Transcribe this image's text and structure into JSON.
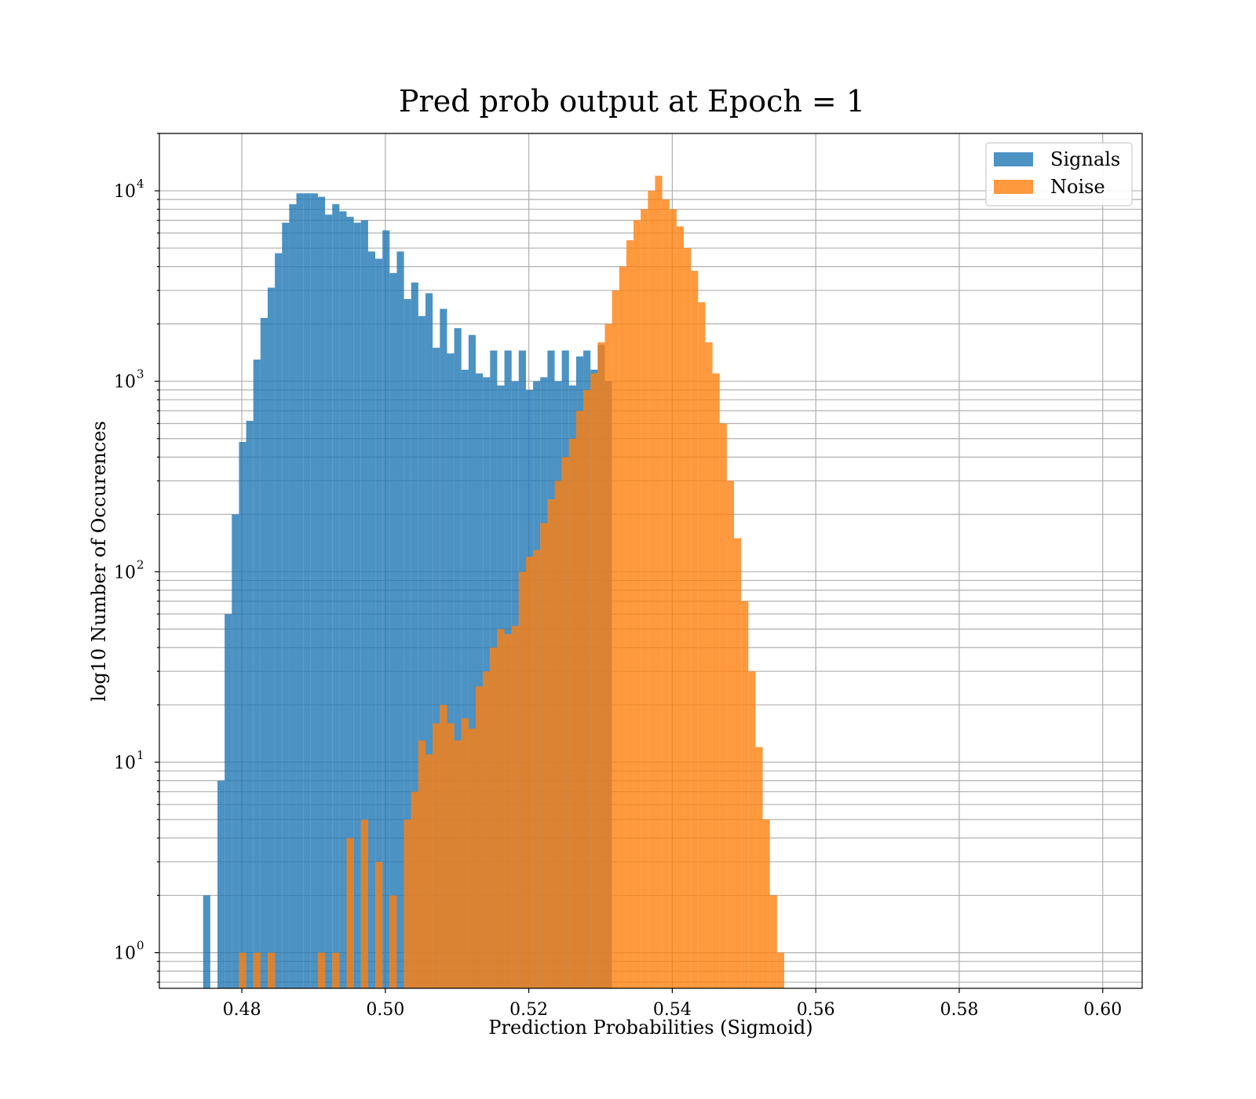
{
  "chart_data": {
    "type": "bar",
    "title": "Pred prob output at Epoch = 1",
    "xlabel": "Prediction Probabilities (Sigmoid)",
    "ylabel": "log10 Number of Occurences",
    "xlim": [
      0.4685,
      0.6055
    ],
    "ylim": [
      0.65,
      20000
    ],
    "yscale": "log",
    "grid": true,
    "legend_position": "top-right",
    "xticks": [
      {
        "value": 0.48,
        "label": "0.48"
      },
      {
        "value": 0.5,
        "label": "0.50"
      },
      {
        "value": 0.52,
        "label": "0.52"
      },
      {
        "value": 0.54,
        "label": "0.54"
      },
      {
        "value": 0.56,
        "label": "0.56"
      },
      {
        "value": 0.58,
        "label": "0.58"
      },
      {
        "value": 0.6,
        "label": "0.60"
      }
    ],
    "yticks": [
      {
        "value": 1,
        "base": "10",
        "exp": "0"
      },
      {
        "value": 10,
        "base": "10",
        "exp": "1"
      },
      {
        "value": 100,
        "base": "10",
        "exp": "2"
      },
      {
        "value": 1000,
        "base": "10",
        "exp": "3"
      },
      {
        "value": 10000,
        "base": "10",
        "exp": "4"
      }
    ],
    "series": [
      {
        "name": "Signals",
        "color": "#1f77b4",
        "bins": [
          [
            0.4746,
            0.4756,
            2
          ],
          [
            0.4766,
            0.4776,
            8
          ],
          [
            0.4776,
            0.4786,
            60
          ],
          [
            0.4786,
            0.4796,
            200
          ],
          [
            0.4796,
            0.4806,
            480
          ],
          [
            0.4806,
            0.4816,
            620
          ],
          [
            0.4816,
            0.4826,
            1300
          ],
          [
            0.4826,
            0.4836,
            2150
          ],
          [
            0.4836,
            0.4846,
            3100
          ],
          [
            0.4846,
            0.4856,
            4700
          ],
          [
            0.4856,
            0.4866,
            6800
          ],
          [
            0.4866,
            0.4876,
            8500
          ],
          [
            0.4876,
            0.4886,
            9700
          ],
          [
            0.4886,
            0.4896,
            9700
          ],
          [
            0.4896,
            0.4906,
            9700
          ],
          [
            0.4906,
            0.4916,
            9300
          ],
          [
            0.4916,
            0.4926,
            7500
          ],
          [
            0.4926,
            0.4936,
            8500
          ],
          [
            0.4936,
            0.4946,
            7800
          ],
          [
            0.4946,
            0.4956,
            7300
          ],
          [
            0.4956,
            0.4966,
            6800
          ],
          [
            0.4966,
            0.4976,
            7000
          ],
          [
            0.4976,
            0.4986,
            4800
          ],
          [
            0.4986,
            0.4996,
            4400
          ],
          [
            0.4996,
            0.5006,
            6200
          ],
          [
            0.5006,
            0.5016,
            3700
          ],
          [
            0.5016,
            0.5026,
            4800
          ],
          [
            0.5026,
            0.5036,
            2700
          ],
          [
            0.5036,
            0.5046,
            3300
          ],
          [
            0.5046,
            0.5056,
            2200
          ],
          [
            0.5056,
            0.5066,
            2900
          ],
          [
            0.5066,
            0.5076,
            1500
          ],
          [
            0.5076,
            0.5086,
            2400
          ],
          [
            0.5086,
            0.5096,
            1400
          ],
          [
            0.5096,
            0.5106,
            1900
          ],
          [
            0.5106,
            0.5116,
            1150
          ],
          [
            0.5116,
            0.5126,
            1750
          ],
          [
            0.5126,
            0.5136,
            1100
          ],
          [
            0.5136,
            0.5146,
            1050
          ],
          [
            0.5146,
            0.5156,
            1450
          ],
          [
            0.5156,
            0.5166,
            950
          ],
          [
            0.5166,
            0.5176,
            1450
          ],
          [
            0.5176,
            0.5186,
            1000
          ],
          [
            0.5186,
            0.5196,
            1450
          ],
          [
            0.5196,
            0.5206,
            900
          ],
          [
            0.5206,
            0.5216,
            1000
          ],
          [
            0.5216,
            0.5226,
            1050
          ],
          [
            0.5226,
            0.5236,
            1450
          ],
          [
            0.5236,
            0.5246,
            1000
          ],
          [
            0.5246,
            0.5256,
            1450
          ],
          [
            0.5256,
            0.5266,
            950
          ],
          [
            0.5266,
            0.5276,
            1350
          ],
          [
            0.5276,
            0.5286,
            1450
          ],
          [
            0.5286,
            0.5296,
            1150
          ],
          [
            0.5296,
            0.5306,
            1550
          ],
          [
            0.5306,
            0.5316,
            1000
          ]
        ]
      },
      {
        "name": "Noise",
        "color": "#ff7f0e",
        "bins": [
          [
            0.4796,
            0.4806,
            1
          ],
          [
            0.4816,
            0.4826,
            1
          ],
          [
            0.4836,
            0.4846,
            1
          ],
          [
            0.4906,
            0.4916,
            1
          ],
          [
            0.4926,
            0.4936,
            1
          ],
          [
            0.4946,
            0.4956,
            4
          ],
          [
            0.4966,
            0.4976,
            5
          ],
          [
            0.4986,
            0.4996,
            3
          ],
          [
            0.5006,
            0.5016,
            2
          ],
          [
            0.5026,
            0.5036,
            5
          ],
          [
            0.5036,
            0.5046,
            7
          ],
          [
            0.5046,
            0.5056,
            13
          ],
          [
            0.5056,
            0.5066,
            11
          ],
          [
            0.5066,
            0.5076,
            16
          ],
          [
            0.5076,
            0.5086,
            20
          ],
          [
            0.5086,
            0.5096,
            16
          ],
          [
            0.5096,
            0.5106,
            13
          ],
          [
            0.5106,
            0.5116,
            17
          ],
          [
            0.5116,
            0.5126,
            15
          ],
          [
            0.5126,
            0.5136,
            25
          ],
          [
            0.5136,
            0.5146,
            30
          ],
          [
            0.5146,
            0.5156,
            40
          ],
          [
            0.5156,
            0.5166,
            50
          ],
          [
            0.5166,
            0.5176,
            47
          ],
          [
            0.5176,
            0.5186,
            52
          ],
          [
            0.5186,
            0.5196,
            100
          ],
          [
            0.5196,
            0.5206,
            120
          ],
          [
            0.5206,
            0.5216,
            130
          ],
          [
            0.5216,
            0.5226,
            180
          ],
          [
            0.5226,
            0.5236,
            240
          ],
          [
            0.5236,
            0.5246,
            300
          ],
          [
            0.5246,
            0.5256,
            400
          ],
          [
            0.5256,
            0.5266,
            500
          ],
          [
            0.5266,
            0.5276,
            700
          ],
          [
            0.5276,
            0.5286,
            900
          ],
          [
            0.5286,
            0.5296,
            1100
          ],
          [
            0.5296,
            0.5306,
            1600
          ],
          [
            0.5306,
            0.5316,
            2000
          ],
          [
            0.5316,
            0.5326,
            3000
          ],
          [
            0.5326,
            0.5336,
            4000
          ],
          [
            0.5336,
            0.5346,
            5500
          ],
          [
            0.5346,
            0.5356,
            7000
          ],
          [
            0.5356,
            0.5366,
            8000
          ],
          [
            0.5366,
            0.5376,
            10000
          ],
          [
            0.5376,
            0.5386,
            12000
          ],
          [
            0.5386,
            0.5396,
            9000
          ],
          [
            0.5396,
            0.5406,
            8000
          ],
          [
            0.5406,
            0.5416,
            6500
          ],
          [
            0.5416,
            0.5426,
            5000
          ],
          [
            0.5426,
            0.5436,
            3800
          ],
          [
            0.5436,
            0.5446,
            2600
          ],
          [
            0.5446,
            0.5456,
            1600
          ],
          [
            0.5456,
            0.5466,
            1100
          ],
          [
            0.5466,
            0.5476,
            600
          ],
          [
            0.5476,
            0.5486,
            300
          ],
          [
            0.5486,
            0.5496,
            150
          ],
          [
            0.5496,
            0.5506,
            70
          ],
          [
            0.5506,
            0.5516,
            30
          ],
          [
            0.5516,
            0.5526,
            12
          ],
          [
            0.5526,
            0.5536,
            5
          ],
          [
            0.5536,
            0.5546,
            2
          ],
          [
            0.5546,
            0.5556,
            1
          ]
        ]
      }
    ]
  }
}
